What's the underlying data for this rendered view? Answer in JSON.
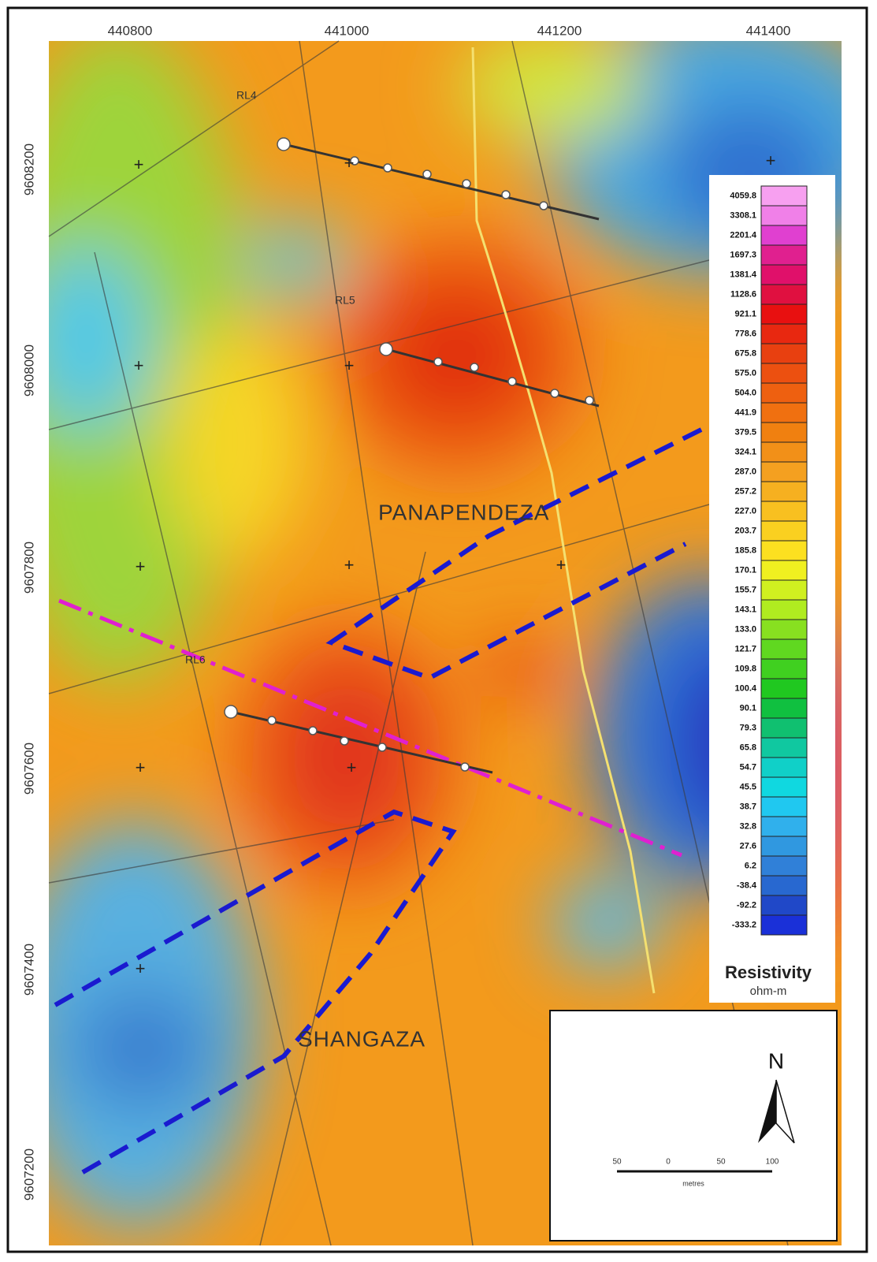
{
  "axes": {
    "x_labels": [
      "440800",
      "441000",
      "441200",
      "441400"
    ],
    "y_labels": [
      "9608200",
      "9608000",
      "9607800",
      "9607600",
      "9607400",
      "9607200"
    ]
  },
  "map_labels": {
    "line_4": "RL4",
    "line_5": "RL5",
    "line_6": "RL6",
    "area_north": "PANAPENDEZA",
    "area_south": "SHANGAZA"
  },
  "legend": {
    "title": "Resistivity",
    "unit": "ohm-m",
    "items": [
      {
        "label": "4059.8",
        "color": "#f7a0f0"
      },
      {
        "label": "3308.1",
        "color": "#f080e8"
      },
      {
        "label": "2201.4",
        "color": "#e040d0"
      },
      {
        "label": "1697.3",
        "color": "#e0208f"
      },
      {
        "label": "1381.4",
        "color": "#e0106a"
      },
      {
        "label": "1128.6",
        "color": "#e01040"
      },
      {
        "label": "921.1",
        "color": "#e81010"
      },
      {
        "label": "778.6",
        "color": "#e82810"
      },
      {
        "label": "675.8",
        "color": "#e84010"
      },
      {
        "label": "575.0",
        "color": "#ec5010"
      },
      {
        "label": "504.0",
        "color": "#ee6010"
      },
      {
        "label": "441.9",
        "color": "#f07010"
      },
      {
        "label": "379.5",
        "color": "#f08010"
      },
      {
        "label": "324.1",
        "color": "#f29018"
      },
      {
        "label": "287.0",
        "color": "#f4a020"
      },
      {
        "label": "257.2",
        "color": "#f6b020"
      },
      {
        "label": "227.0",
        "color": "#f8c020"
      },
      {
        "label": "203.7",
        "color": "#fad020"
      },
      {
        "label": "185.8",
        "color": "#fce020"
      },
      {
        "label": "170.1",
        "color": "#f0f020"
      },
      {
        "label": "155.7",
        "color": "#d0f020"
      },
      {
        "label": "143.1",
        "color": "#b0ec20"
      },
      {
        "label": "133.0",
        "color": "#88e020"
      },
      {
        "label": "121.7",
        "color": "#60d820"
      },
      {
        "label": "109.8",
        "color": "#40d020"
      },
      {
        "label": "100.4",
        "color": "#20c820"
      },
      {
        "label": "90.1",
        "color": "#10c040"
      },
      {
        "label": "79.3",
        "color": "#10c070"
      },
      {
        "label": "65.8",
        "color": "#10c8a0"
      },
      {
        "label": "54.7",
        "color": "#10d0c8"
      },
      {
        "label": "45.5",
        "color": "#10d8e0"
      },
      {
        "label": "38.7",
        "color": "#20c8f0"
      },
      {
        "label": "32.8",
        "color": "#30b0ec"
      },
      {
        "label": "27.6",
        "color": "#3098e0"
      },
      {
        "label": "6.2",
        "color": "#3080d8"
      },
      {
        "label": "-38.4",
        "color": "#2868d0"
      },
      {
        "label": "-92.2",
        "color": "#2048c8"
      },
      {
        "label": "-333.2",
        "color": "#1a30d8"
      }
    ]
  },
  "north_arrow": {
    "label": "N"
  },
  "scale_bar": {
    "ticks": [
      "50",
      "0",
      "50",
      "100"
    ],
    "unit": "metres"
  }
}
